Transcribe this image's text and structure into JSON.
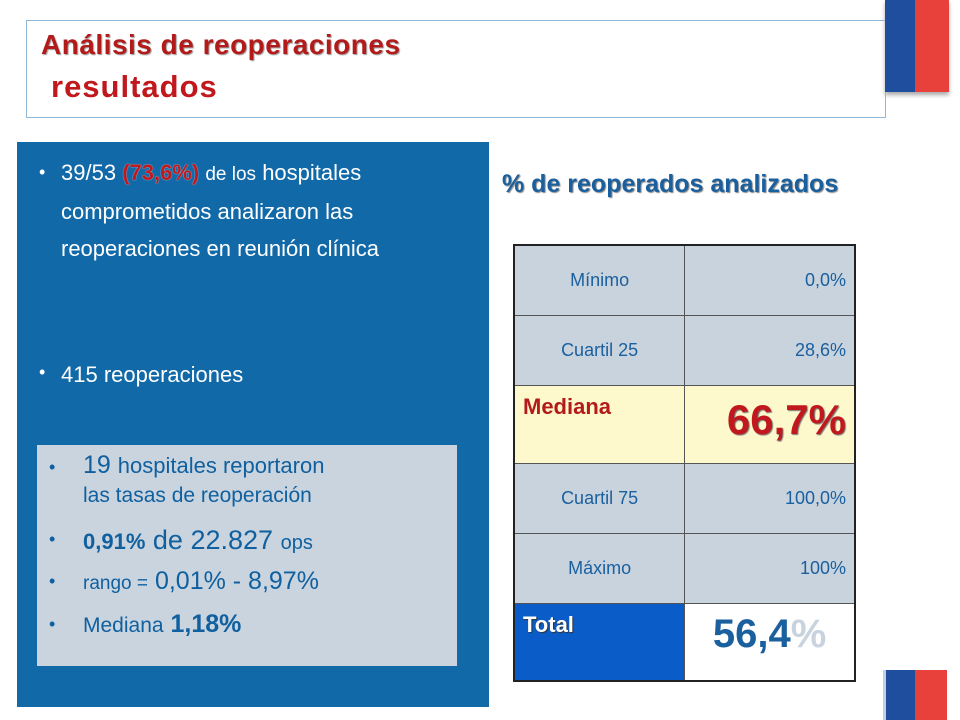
{
  "header": {
    "title": "Análisis de reoperaciones",
    "subtitle": "resultados"
  },
  "left_panel": {
    "bullet1": {
      "count": "39/53",
      "pct": "(73,6%)",
      "mid": "de los",
      "rest": "hospitales comprometidos analizaron las reoperaciones en reunión clínica"
    },
    "bullet2": "415 reoperaciones",
    "inner_box": {
      "item1_num": "19",
      "item1_text": "hospitales reportaron",
      "item1_line2": "las tasas de reoperación",
      "item2_pct": "0,91%",
      "item2_mid": "de",
      "item2_num": "22.827",
      "item2_end": "ops",
      "item3_label": "rango =",
      "item3_value": "0,01% - 8,97%",
      "item4_label": "Mediana",
      "item4_value": "1,18%"
    }
  },
  "right": {
    "heading": "% de reoperados analizados",
    "table": [
      {
        "label": "Mínimo",
        "value": "0,0%"
      },
      {
        "label": "Cuartil 25",
        "value": "28,6%"
      },
      {
        "label": "Mediana",
        "value": "66,7%"
      },
      {
        "label": "Cuartil 75",
        "value": "100,0%"
      },
      {
        "label": "Máximo",
        "value": "100%"
      },
      {
        "label": "Total",
        "value_num": "56,4",
        "value_pct": "%"
      }
    ]
  },
  "colors": {
    "panel_blue": "#1169a8",
    "title_red": "#c0181c",
    "flag_blue": "#1f4e9e",
    "flag_red": "#e8413c"
  }
}
